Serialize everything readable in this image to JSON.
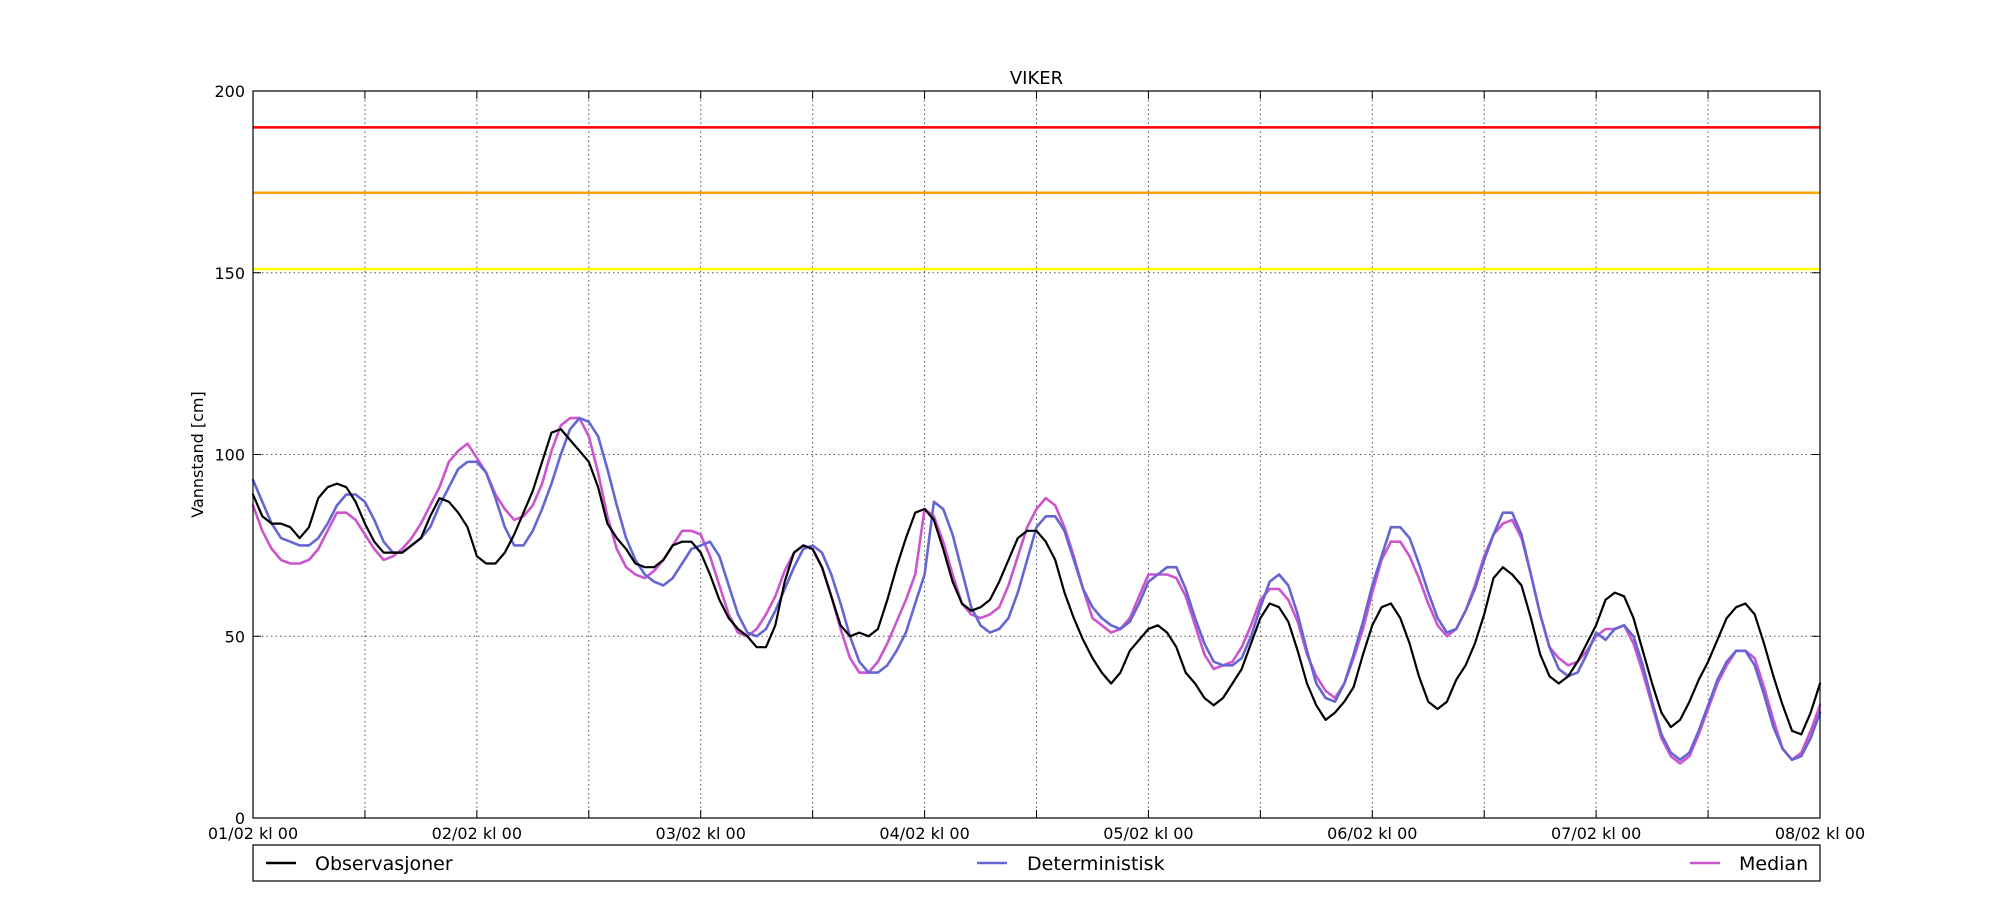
{
  "chart_data": {
    "type": "line",
    "title": "VIKER",
    "xlabel": "",
    "ylabel": "Vannstand [cm]",
    "ylim": [
      0,
      200
    ],
    "yticks": [
      0,
      50,
      100,
      150,
      200
    ],
    "xlim": [
      0,
      168
    ],
    "x_tick_labels": [
      "01/02 kl 00",
      "02/02 kl 00",
      "03/02 kl 00",
      "04/02 kl 00",
      "05/02 kl 00",
      "06/02 kl 00",
      "07/02 kl 00",
      "08/02 kl 00"
    ],
    "grid": true,
    "legend_placement": "bottom, below plot",
    "thresholds": [
      {
        "value": 190,
        "color": "#ff0000"
      },
      {
        "value": 172,
        "color": "#ffa500"
      },
      {
        "value": 151,
        "color": "#ffff00"
      }
    ],
    "x_step_hours": 1,
    "series": [
      {
        "name": "Observasjoner",
        "color": "#000000",
        "values": [
          89,
          83,
          81,
          81,
          80,
          77,
          80,
          88,
          91,
          92,
          91,
          87,
          81,
          76,
          73,
          73,
          73,
          75,
          77,
          83,
          88,
          87,
          84,
          80,
          72,
          70,
          70,
          73,
          78,
          84,
          90,
          98,
          106,
          107,
          104,
          101,
          98,
          91,
          81,
          77,
          74,
          70,
          69,
          69,
          71,
          75,
          76,
          76,
          73,
          67,
          60,
          55,
          52,
          50,
          47,
          47,
          53,
          65,
          73,
          75,
          74,
          69,
          61,
          53,
          50,
          51,
          50,
          52,
          60,
          69,
          77,
          84,
          85,
          82,
          74,
          65,
          59,
          57,
          58,
          60,
          65,
          71,
          77,
          79,
          79,
          76,
          71,
          62,
          55,
          49,
          44,
          40,
          37,
          40,
          46,
          49,
          52,
          53,
          51,
          47,
          40,
          37,
          33,
          31,
          33,
          37,
          41,
          48,
          55,
          59,
          58,
          54,
          46,
          37,
          31,
          27,
          29,
          32,
          36,
          45,
          53,
          58,
          59,
          55,
          48,
          39,
          32,
          30,
          32,
          38,
          42,
          48,
          56,
          66,
          69,
          67,
          64,
          55,
          45,
          39,
          37,
          39,
          43,
          48,
          53,
          60,
          62,
          61,
          55,
          46,
          37,
          29,
          25,
          27,
          32,
          38,
          43,
          49,
          55,
          58,
          59,
          56,
          48,
          39,
          31,
          24,
          23,
          29,
          37
        ]
      },
      {
        "name": "Deterministisk",
        "color": "#6565d3",
        "values": [
          93,
          87,
          81,
          77,
          76,
          75,
          75,
          77,
          81,
          86,
          89,
          89,
          87,
          82,
          76,
          73,
          73,
          75,
          77,
          80,
          86,
          91,
          96,
          98,
          98,
          95,
          88,
          80,
          75,
          75,
          79,
          85,
          92,
          100,
          107,
          110,
          109,
          105,
          96,
          86,
          77,
          71,
          67,
          65,
          64,
          66,
          70,
          74,
          75,
          76,
          72,
          64,
          56,
          51,
          50,
          52,
          57,
          63,
          69,
          74,
          75,
          73,
          67,
          59,
          50,
          43,
          40,
          40,
          42,
          46,
          51,
          59,
          67,
          87,
          85,
          78,
          68,
          58,
          53,
          51,
          52,
          55,
          62,
          71,
          80,
          83,
          83,
          79,
          71,
          63,
          58,
          55,
          53,
          52,
          54,
          59,
          65,
          67,
          69,
          69,
          63,
          55,
          48,
          43,
          42,
          42,
          44,
          50,
          58,
          65,
          67,
          64,
          56,
          46,
          37,
          33,
          32,
          37,
          45,
          54,
          64,
          72,
          80,
          80,
          77,
          70,
          62,
          55,
          51,
          52,
          57,
          63,
          71,
          78,
          84,
          84,
          78,
          67,
          56,
          47,
          41,
          39,
          40,
          45,
          51,
          49,
          52,
          53,
          50,
          42,
          32,
          23,
          18,
          16,
          18,
          24,
          31,
          38,
          43,
          46,
          46,
          42,
          34,
          25,
          19,
          16,
          17,
          22,
          29
        ]
      },
      {
        "name": "Median",
        "color": "#cc55cc",
        "values": [
          86,
          79,
          74,
          71,
          70,
          70,
          71,
          74,
          79,
          84,
          84,
          82,
          78,
          74,
          71,
          72,
          74,
          77,
          81,
          86,
          91,
          98,
          101,
          103,
          99,
          95,
          89,
          85,
          82,
          83,
          86,
          92,
          101,
          108,
          110,
          110,
          105,
          95,
          83,
          74,
          69,
          67,
          66,
          68,
          71,
          75,
          79,
          79,
          78,
          72,
          64,
          56,
          51,
          50,
          52,
          56,
          61,
          68,
          73,
          75,
          74,
          69,
          61,
          52,
          44,
          40,
          40,
          43,
          48,
          54,
          60,
          67,
          85,
          83,
          76,
          67,
          59,
          56,
          55,
          56,
          58,
          64,
          72,
          80,
          85,
          88,
          86,
          80,
          72,
          63,
          55,
          53,
          51,
          52,
          55,
          61,
          67,
          67,
          67,
          66,
          61,
          53,
          45,
          41,
          42,
          43,
          47,
          53,
          60,
          63,
          63,
          60,
          54,
          45,
          39,
          35,
          33,
          37,
          44,
          52,
          62,
          71,
          76,
          76,
          72,
          66,
          59,
          53,
          50,
          52,
          57,
          64,
          72,
          78,
          81,
          82,
          77,
          67,
          56,
          47,
          44,
          42,
          43,
          46,
          50,
          52,
          52,
          53,
          48,
          40,
          31,
          22,
          17,
          15,
          17,
          23,
          30,
          37,
          42,
          46,
          46,
          44,
          36,
          27,
          19,
          16,
          18,
          24,
          31
        ]
      }
    ]
  }
}
